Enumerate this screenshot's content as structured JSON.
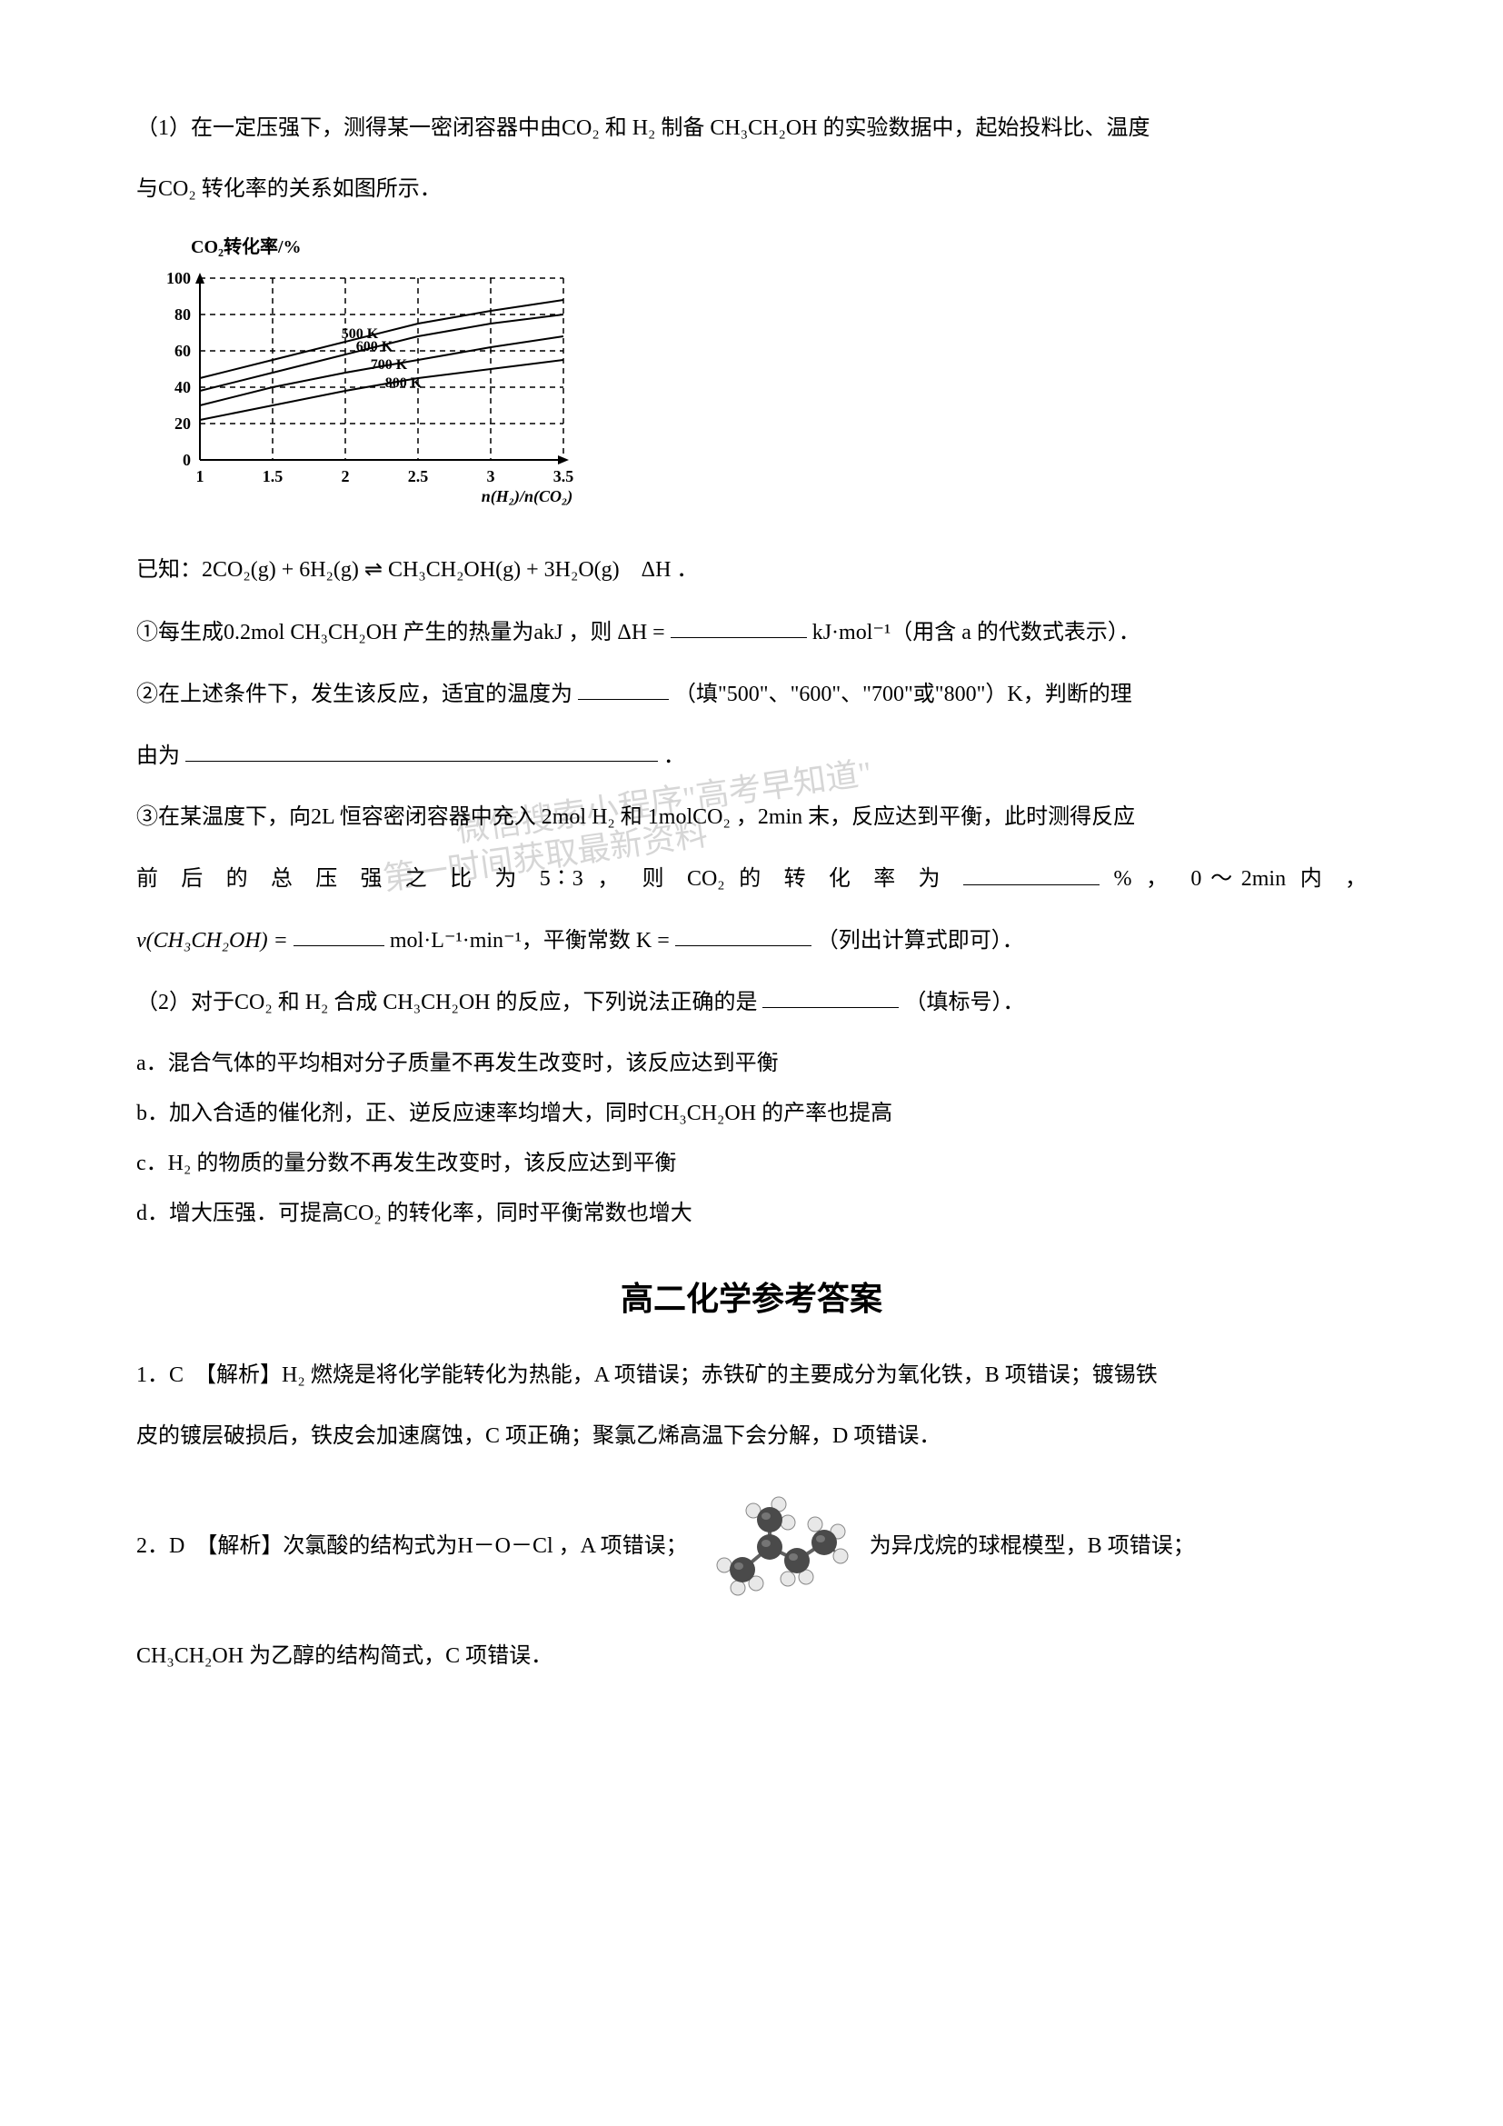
{
  "q1": {
    "intro": "（1）在一定压强下，测得某一密闭容器中由CO₂ 和 H₂ 制备 CH₃CH₂OH 的实验数据中，起始投料比、温度",
    "intro2": "与CO₂ 转化率的关系如图所示．"
  },
  "chart": {
    "type": "line",
    "title": "CO₂转化率/%",
    "xlabel": "n(H₂)/n(CO₂)",
    "x_ticks": [
      1,
      1.5,
      2,
      2.5,
      3,
      3.5
    ],
    "y_ticks": [
      0,
      20,
      40,
      60,
      80,
      100
    ],
    "xlim": [
      1,
      3.5
    ],
    "ylim": [
      0,
      100
    ],
    "series_labels": [
      "500 K",
      "600 K",
      "700 K",
      "800 K"
    ],
    "series_data": {
      "500K": [
        [
          1,
          45
        ],
        [
          1.5,
          55
        ],
        [
          2,
          65
        ],
        [
          2.5,
          75
        ],
        [
          3,
          82
        ],
        [
          3.5,
          88
        ]
      ],
      "600K": [
        [
          1,
          38
        ],
        [
          1.5,
          48
        ],
        [
          2,
          58
        ],
        [
          2.5,
          68
        ],
        [
          3,
          75
        ],
        [
          3.5,
          80
        ]
      ],
      "700K": [
        [
          1,
          30
        ],
        [
          1.5,
          40
        ],
        [
          2,
          48
        ],
        [
          2.5,
          55
        ],
        [
          3,
          62
        ],
        [
          3.5,
          68
        ]
      ],
      "800K": [
        [
          1,
          22
        ],
        [
          1.5,
          30
        ],
        [
          2,
          38
        ],
        [
          2.5,
          45
        ],
        [
          3,
          50
        ],
        [
          3.5,
          55
        ]
      ]
    },
    "line_color": "#000000",
    "grid_style": "dashed",
    "grid_color": "#000000",
    "background_color": "#ffffff",
    "axis_fontsize": 18,
    "label_fontsize": 16
  },
  "equation": "已知：2CO₂(g) + 6H₂(g) ⇌ CH₃CH₂OH(g) + 3H₂O(g)　ΔH ．",
  "sub_questions": {
    "q1_1": "①每生成0.2mol CH₃CH₂OH 产生的热量为akJ ，则 ΔH =",
    "q1_1_suffix": "kJ·mol⁻¹（用含 a 的代数式表示）．",
    "q1_2a": "②在上述条件下，发生该反应，适宜的温度为",
    "q1_2a_hint": "（填\"500\"、\"600\"、\"700\"或\"800\"）K，判断的理",
    "q1_2b": "由为",
    "q1_2b_end": "．",
    "q1_3a": "③在某温度下，向2L 恒容密闭容器中充入 2mol H₂ 和 1molCO₂ ，2min 末，反应达到平衡，此时测得反应",
    "q1_3b_pre": "前 后 的 总 压 强 之 比 为 5∶3 ， 则 CO₂ 的 转 化 率 为",
    "q1_3b_mid": "% ， 0～2min 内 ，",
    "q1_3c_pre": "v(CH₃CH₂OH) =",
    "q1_3c_unit": "mol·L⁻¹·min⁻¹，平衡常数 K =",
    "q1_3c_end": "（列出计算式即可）．"
  },
  "q2": {
    "stem": "（2）对于CO₂ 和 H₂ 合成 CH₃CH₂OH 的反应，下列说法正确的是",
    "stem_end": "（填标号）．",
    "opt_a": "a．混合气体的平均相对分子质量不再发生改变时，该反应达到平衡",
    "opt_b": "b．加入合适的催化剂，正、逆反应速率均增大，同时CH₃CH₂OH 的产率也提高",
    "opt_c": "c．H₂ 的物质的量分数不再发生改变时，该反应达到平衡",
    "opt_d": "d．增大压强．可提高CO₂ 的转化率，同时平衡常数也增大"
  },
  "answers": {
    "title": "高二化学参考答案",
    "a1_pre": "1．C　【解析】H₂ 燃烧是将化学能转化为热能，A 项错误；赤铁矿的主要成分为氧化铁，B 项错误；镀锡铁",
    "a1_post": "皮的镀层破损后，铁皮会加速腐蚀，C 项正确；聚氯乙烯高温下会分解，D 项错误．",
    "a2_pre": "2．D　【解析】次氯酸的结构式为H－O－Cl ，A 项错误；",
    "a2_post": "为异戊烷的球棍模型，B 项错误；",
    "a2_line2": "CH₃CH₂OH 为乙醇的结构简式，C 项错误．"
  },
  "watermarks": {
    "w1": "微信搜索小程序\"高考早知道\"",
    "w2": "第一时间获取最新资料"
  },
  "molecule": {
    "node_color_dark": "#4a4a4a",
    "node_color_light": "#e8e8e8",
    "edge_color": "#606060",
    "dark_radius": 14,
    "light_radius": 8
  }
}
